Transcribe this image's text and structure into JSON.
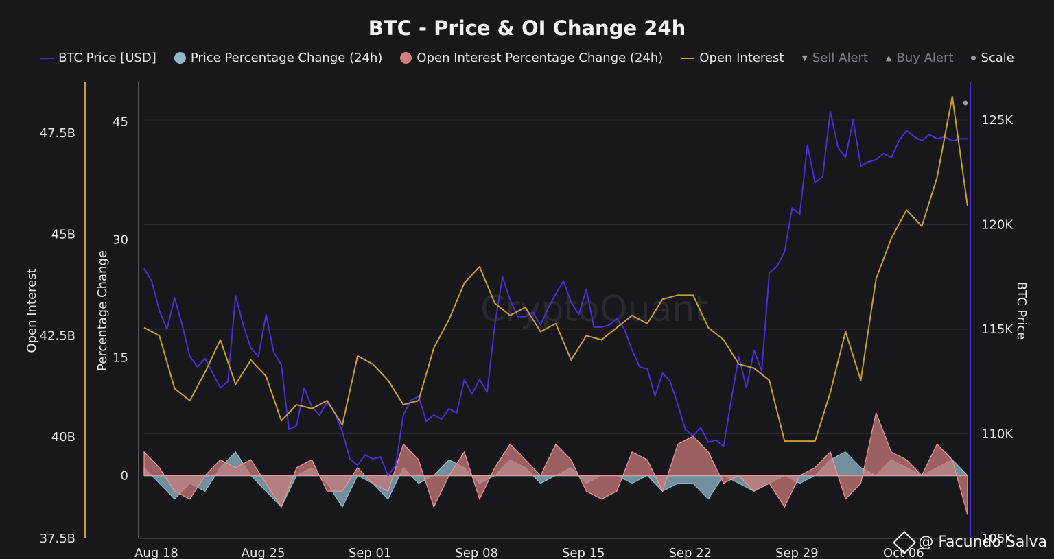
{
  "chart_data": {
    "type": "line",
    "title": "BTC - Price & OI Change 24h",
    "legend": [
      {
        "label": "BTC Price [USD]",
        "marker": "line",
        "color": "#4b2fd4",
        "active": true
      },
      {
        "label": "Price Percentage Change (24h)",
        "marker": "dot",
        "color": "#8fb8c8",
        "active": true
      },
      {
        "label": "Open Interest Percentage Change (24h)",
        "marker": "dot",
        "color": "#d27d7d",
        "active": true
      },
      {
        "label": "Open Interest",
        "marker": "line",
        "color": "#c9a02c",
        "active": true
      },
      {
        "label": "Sell Alert",
        "marker": "tri-down",
        "color": "#9a9aa2",
        "active": false
      },
      {
        "label": "Buy Alert",
        "marker": "tri-up",
        "color": "#9a9aa2",
        "active": false
      },
      {
        "label": "Scale",
        "marker": "small-dot",
        "color": "#9a9aa2",
        "active": true
      }
    ],
    "x_ticks": [
      "Aug 18",
      "Aug 25",
      "Sep 01",
      "Sep 08",
      "Sep 15",
      "Sep 22",
      "Sep 29",
      "Oct 06"
    ],
    "axes": {
      "open_interest": {
        "label": "Open Interest",
        "ticks": [
          "47.5B",
          "45B",
          "42.5B",
          "40B",
          "37.5B"
        ],
        "range": [
          37.5,
          48.75
        ],
        "unit": "B",
        "color": "#c9a02c"
      },
      "percentage": {
        "label": "Percentage Change",
        "ticks": [
          "45",
          "30",
          "15",
          "0"
        ],
        "range": [
          -8,
          50
        ]
      },
      "btc_price": {
        "label": "BTC Price",
        "ticks": [
          "125K",
          "120K",
          "115K",
          "110K",
          "105K"
        ],
        "range": [
          105,
          126.8
        ],
        "unit": "K",
        "color": "#4b2fd4"
      }
    },
    "series": [
      {
        "name": "BTC Price [USD]",
        "axis": "btc_price",
        "x": [
          0,
          0.5,
          1,
          1.5,
          2,
          2.5,
          3,
          3.5,
          4,
          4.5,
          5,
          5.5,
          6,
          6.5,
          7,
          7.5,
          8,
          8.5,
          9,
          9.5,
          10,
          10.5,
          11,
          11.5,
          12,
          12.5,
          13,
          13.5,
          14,
          14.5,
          15,
          15.5,
          16,
          16.5,
          17,
          17.5,
          18,
          18.5,
          19,
          19.5,
          20,
          20.5,
          21,
          21.5,
          22,
          22.5,
          23,
          23.5,
          24,
          24.5,
          25,
          25.5,
          26,
          26.5,
          27,
          27.5,
          28,
          28.5,
          29,
          29.5,
          30,
          30.5,
          31,
          31.5,
          32,
          32.5,
          33,
          33.5,
          34,
          34.5,
          35,
          35.5,
          36,
          36.5,
          37,
          37.5,
          38,
          38.5,
          39,
          39.5,
          40,
          40.5,
          41,
          41.5,
          42,
          42.5,
          43,
          43.5,
          44,
          44.5,
          45,
          45.5,
          46,
          46.5,
          47,
          47.5,
          48,
          48.5,
          49,
          49.5,
          50,
          50.5,
          51,
          51.5,
          52,
          52.5,
          53,
          53.5,
          54
        ],
        "values": [
          117.9,
          117.3,
          115.9,
          115.0,
          116.5,
          115.2,
          113.7,
          113.2,
          113.6,
          112.9,
          112.2,
          112.5,
          116.6,
          115.2,
          114.1,
          113.7,
          115.7,
          113.9,
          113.3,
          110.2,
          110.4,
          112.2,
          111.3,
          110.9,
          111.5,
          111.0,
          110.1,
          108.8,
          108.5,
          109.0,
          108.8,
          108.9,
          108.0,
          108.5,
          110.9,
          111.6,
          111.8,
          110.6,
          110.9,
          110.7,
          111.2,
          111.0,
          112.6,
          111.9,
          112.6,
          112.0,
          115.2,
          117.5,
          116.4,
          115.6,
          115.6,
          115.8,
          115.2,
          116.0,
          116.7,
          117.3,
          116.3,
          115.7,
          116.9,
          115.1,
          115.1,
          115.2,
          115.5,
          115.0,
          114.0,
          113.2,
          113.1,
          111.8,
          112.9,
          112.5,
          111.4,
          110.2,
          109.9,
          110.3,
          109.6,
          109.7,
          109.4,
          111.6,
          113.7,
          112.2,
          114.0,
          113.0,
          117.7,
          118.0,
          118.7,
          120.8,
          120.5,
          123.8,
          122.0,
          122.3,
          125.4,
          123.7,
          123.2,
          125.0,
          122.8,
          123.0,
          123.1,
          123.4,
          123.2,
          124.0,
          124.5,
          124.2,
          124.0,
          124.3,
          124.1,
          124.2,
          124.0,
          124.1,
          124.1
        ]
      },
      {
        "name": "Open Interest",
        "axis": "open_interest",
        "x": [
          0,
          1,
          2,
          3,
          4,
          5,
          6,
          7,
          8,
          9,
          10,
          11,
          12,
          13,
          14,
          15,
          16,
          17,
          18,
          19,
          20,
          21,
          22,
          23,
          24,
          25,
          26,
          27,
          28,
          29,
          30,
          31,
          32,
          33,
          34,
          35,
          36,
          37,
          38,
          39,
          40,
          41,
          42,
          43,
          44,
          45,
          46,
          47,
          48,
          49,
          50,
          51,
          52,
          53,
          54
        ],
        "values": [
          42.7,
          42.5,
          41.2,
          40.9,
          41.6,
          42.4,
          41.3,
          41.9,
          41.5,
          40.4,
          40.8,
          40.7,
          40.9,
          40.3,
          42.0,
          41.8,
          41.4,
          40.8,
          40.9,
          42.2,
          42.9,
          43.8,
          44.2,
          43.3,
          43.0,
          43.2,
          42.6,
          42.8,
          41.9,
          42.5,
          42.4,
          42.7,
          43.0,
          42.8,
          43.4,
          43.5,
          43.5,
          42.7,
          42.4,
          41.8,
          41.7,
          41.4,
          39.9,
          39.9,
          39.9,
          41.1,
          42.6,
          41.4,
          43.9,
          44.9,
          45.6,
          45.2,
          46.4,
          48.4,
          45.7
        ]
      },
      {
        "name": "Price Percentage Change (24h)",
        "axis": "percentage",
        "x": [
          0,
          1,
          2,
          3,
          4,
          5,
          6,
          7,
          8,
          9,
          10,
          11,
          12,
          13,
          14,
          15,
          16,
          17,
          18,
          19,
          20,
          21,
          22,
          23,
          24,
          25,
          26,
          27,
          28,
          29,
          30,
          31,
          32,
          33,
          34,
          35,
          36,
          37,
          38,
          39,
          40,
          41,
          42,
          43,
          44,
          45,
          46,
          47,
          48,
          49,
          50,
          51,
          52,
          53,
          54
        ],
        "values": [
          1,
          -1,
          -3,
          -1,
          -2,
          1,
          3,
          0,
          -2,
          -4,
          0,
          1,
          -1,
          -4,
          0,
          -1,
          -3,
          1,
          -1,
          0,
          2,
          1,
          -1,
          0,
          2,
          1,
          -1,
          0,
          1,
          -1,
          0,
          0,
          -1,
          0,
          -2,
          -1,
          -1,
          -3,
          0,
          -1,
          -2,
          -1,
          0,
          -1,
          0,
          2,
          3,
          1,
          0,
          2,
          1,
          0,
          1,
          2,
          0
        ]
      },
      {
        "name": "Open Interest Percentage Change (24h)",
        "axis": "percentage",
        "x": [
          0,
          1,
          2,
          3,
          4,
          5,
          6,
          7,
          8,
          9,
          10,
          11,
          12,
          13,
          14,
          15,
          16,
          17,
          18,
          19,
          20,
          21,
          22,
          23,
          24,
          25,
          26,
          27,
          28,
          29,
          30,
          31,
          32,
          33,
          34,
          35,
          36,
          37,
          38,
          39,
          40,
          41,
          42,
          43,
          44,
          45,
          46,
          47,
          48,
          49,
          50,
          51,
          52,
          53,
          54
        ],
        "values": [
          3,
          1,
          -2,
          -3,
          0,
          2,
          1,
          2,
          -1,
          -4,
          1,
          2,
          -2,
          -2,
          1,
          -1,
          -2,
          4,
          2,
          -4,
          0,
          3,
          -3,
          1,
          4,
          2,
          0,
          4,
          2,
          -2,
          -3,
          -2,
          3,
          2,
          -2,
          4,
          5,
          3,
          -1,
          0,
          -2,
          -1,
          -4,
          0,
          1,
          3,
          -3,
          -1,
          8,
          3,
          2,
          0,
          4,
          2,
          -5
        ]
      }
    ],
    "grid": true
  },
  "watermark": {
    "text": "@ Facundo Salva",
    "center_text": "CryptoQuant"
  }
}
